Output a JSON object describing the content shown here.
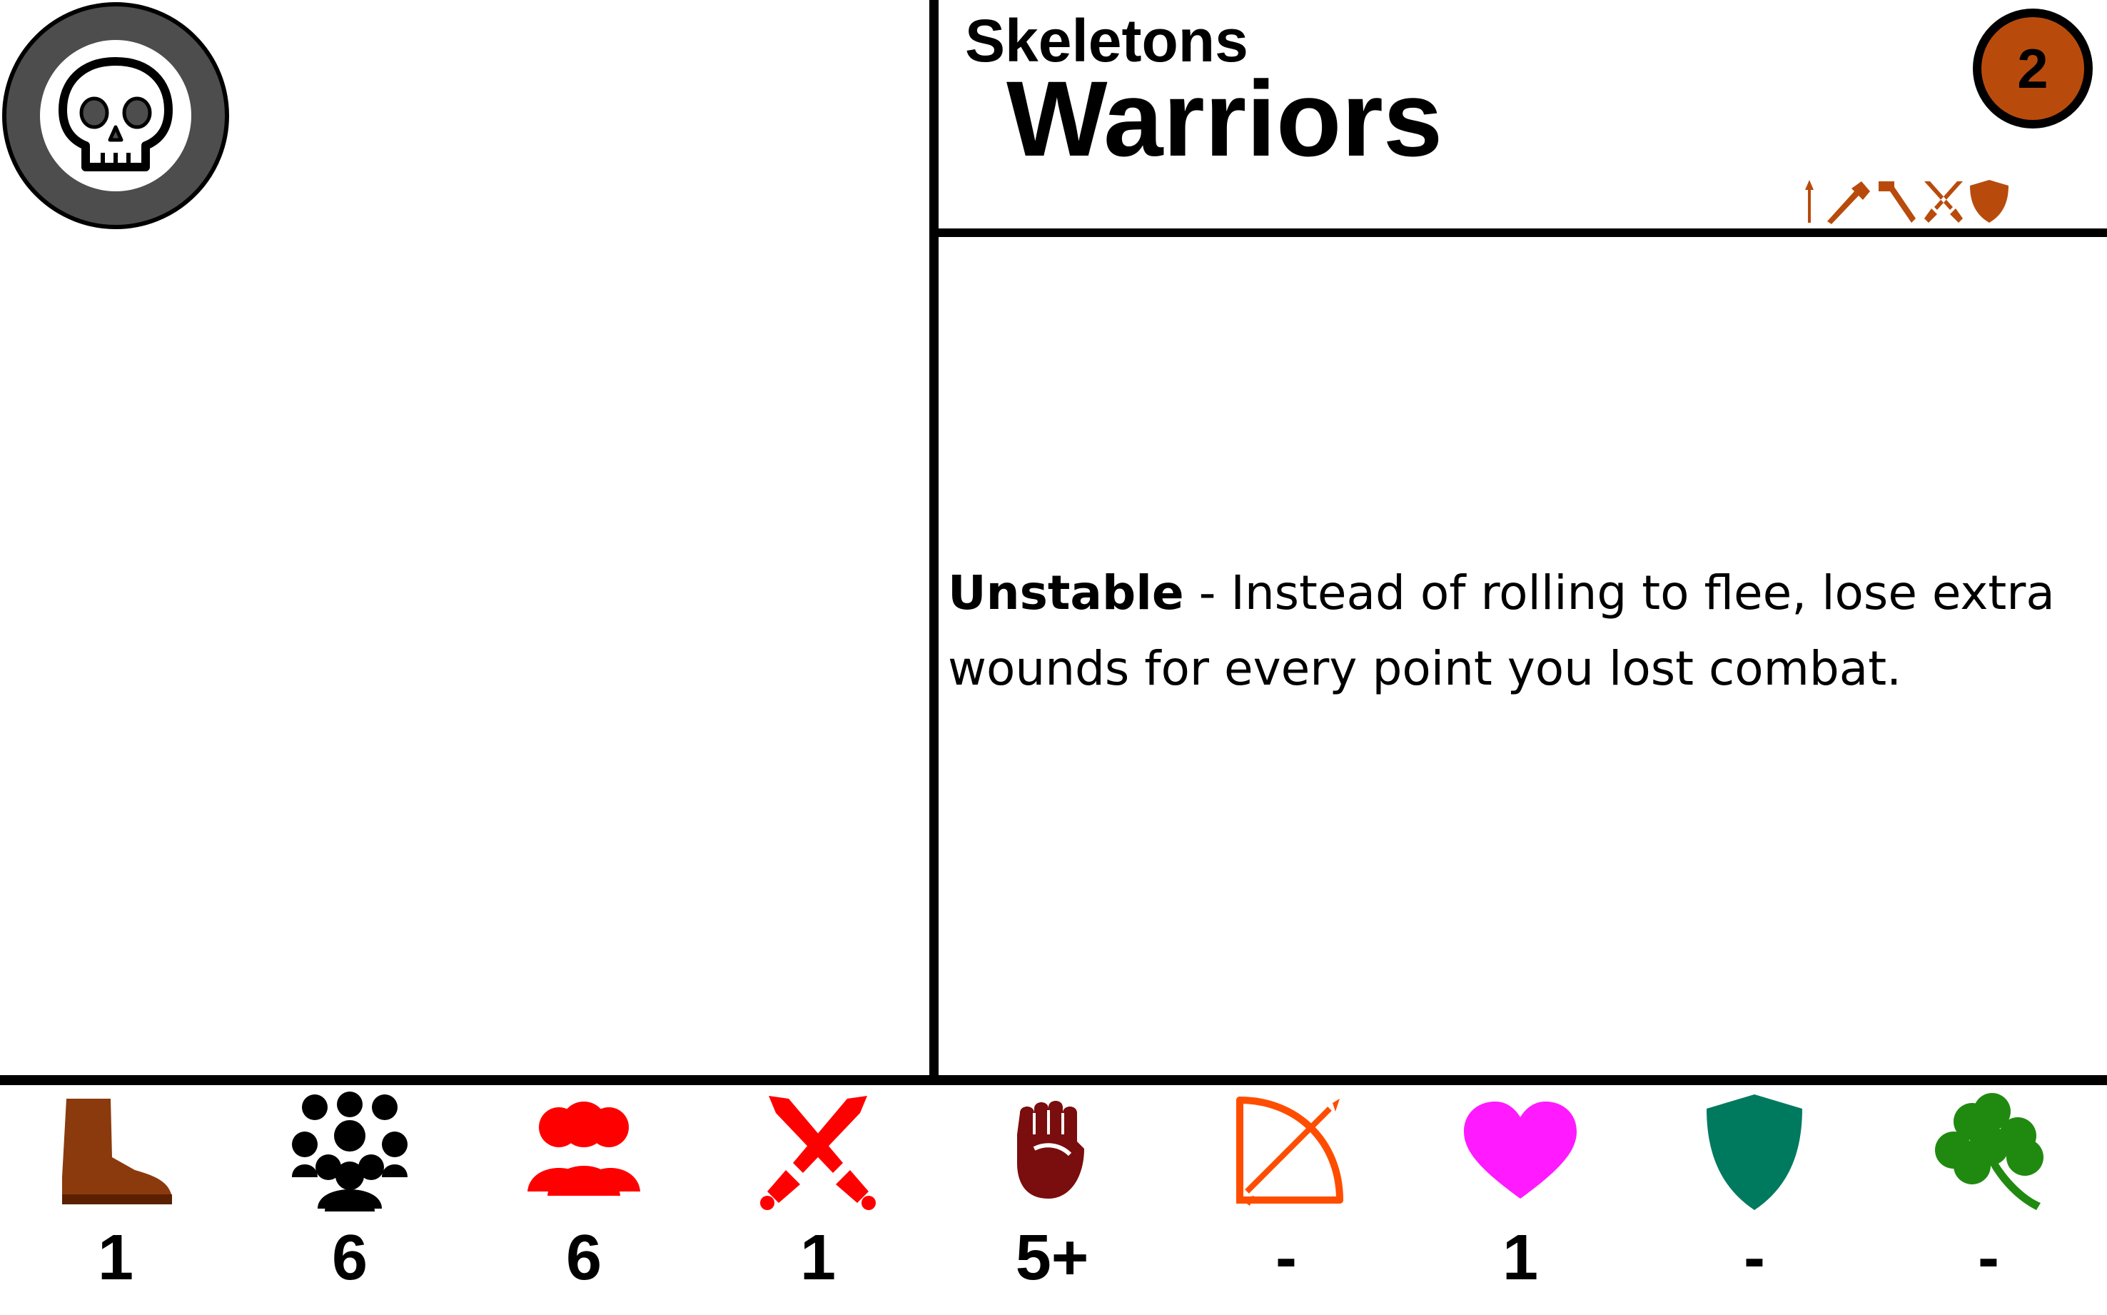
{
  "card": {
    "faction_name": "Skeletons",
    "unit_name": "Warriors",
    "cost": "2",
    "faction_icon": "skull-icon",
    "equipment_icons": [
      "spear-icon",
      "axe-icon",
      "hammer-icon",
      "crossed-swords-icon",
      "shield-icon"
    ],
    "equipment_color": "#b84b0c"
  },
  "ability": {
    "name": "Unstable",
    "separator": " - ",
    "text": "Instead of rolling to flee, lose extra wounds for every point you lost combat."
  },
  "stats": [
    {
      "icon": "boot-icon",
      "color": "#8b3a0e",
      "value": "1"
    },
    {
      "icon": "group-icon",
      "color": "#000000",
      "value": "6"
    },
    {
      "icon": "people-icon",
      "color": "#ff0000",
      "value": "6"
    },
    {
      "icon": "crossed-swords-icon",
      "color": "#ff0000",
      "value": "1"
    },
    {
      "icon": "fist-icon",
      "color": "#7a0d0d",
      "value": "5+"
    },
    {
      "icon": "bow-icon",
      "color": "#ff4d00",
      "value": "-"
    },
    {
      "icon": "heart-icon",
      "color": "#ff1aff",
      "value": "1"
    },
    {
      "icon": "shield-icon",
      "color": "#007a5e",
      "value": "-"
    },
    {
      "icon": "clover-icon",
      "color": "#208a10",
      "value": "-"
    }
  ]
}
